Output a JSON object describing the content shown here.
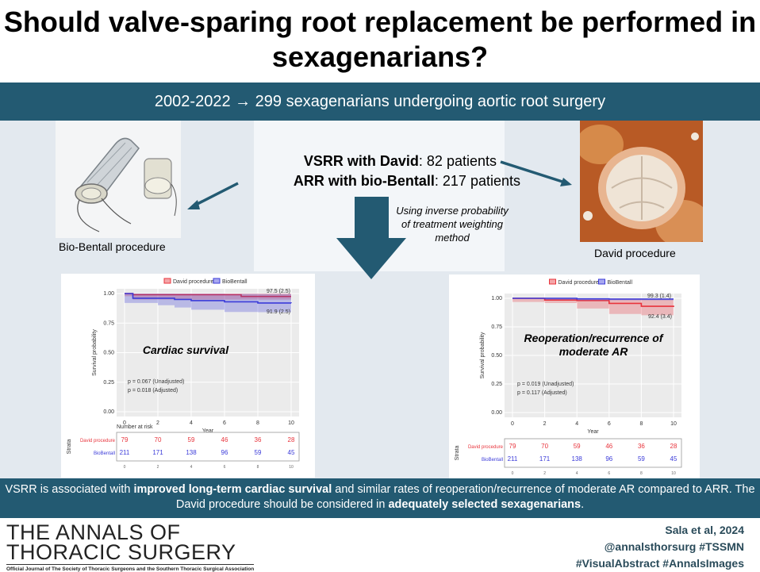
{
  "title": "Should valve-sparing root replacement be performed in sexagenarians?",
  "band_text": "2002-2022 → 299 sexagenarians undergoing aortic root surgery",
  "groups": {
    "vsrr_label": "VSRR with David",
    "vsrr_count": ": 82 patients",
    "arr_label": "ARR with bio-Bentall",
    "arr_count": ": 217 patients"
  },
  "method_note": "Using inverse probability of treatment weighting method",
  "images": {
    "bentall_caption": "Bio-Bentall procedure",
    "david_caption": "David procedure"
  },
  "colors": {
    "accent": "#235a72",
    "david": "#e8343c",
    "biobentall": "#3b3bd9"
  },
  "chart_data": [
    {
      "type": "line",
      "overlay_title": "Cardiac survival",
      "xlabel": "Year",
      "ylabel": "Survival probability",
      "legend": [
        "David procedure",
        "BioBentall"
      ],
      "x_ticks": [
        "0",
        "2",
        "4",
        "6",
        "8",
        "10"
      ],
      "y_ticks": [
        "0.00",
        "0.25",
        "0.50",
        "0.75",
        "1.00"
      ],
      "ylim": [
        0,
        1
      ],
      "xlim": [
        0,
        10
      ],
      "series": [
        {
          "name": "David procedure",
          "x": [
            0,
            0.5,
            7,
            10
          ],
          "y": [
            1.0,
            0.99,
            0.975,
            0.975
          ]
        },
        {
          "name": "BioBentall",
          "x": [
            0,
            0.5,
            2,
            3,
            4,
            6,
            8,
            10
          ],
          "y": [
            1.0,
            0.96,
            0.96,
            0.95,
            0.94,
            0.93,
            0.92,
            0.919
          ]
        }
      ],
      "end_labels": [
        "97.5 (2.5)",
        "91.9 (2.5)"
      ],
      "p_values": [
        "p = 0.067 (Unadjusted)",
        "p = 0.018 (Adjusted)"
      ],
      "risk_table": {
        "title": "Number at risk",
        "strata_label": "Strata",
        "rows": [
          {
            "name": "David procedure",
            "values": [
              "79",
              "70",
              "59",
              "46",
              "36",
              "28"
            ]
          },
          {
            "name": "BioBentall",
            "values": [
              "211",
              "171",
              "138",
              "96",
              "59",
              "45"
            ]
          }
        ]
      }
    },
    {
      "type": "line",
      "overlay_title": "Reoperation/recurrence of moderate AR",
      "xlabel": "Year",
      "ylabel": "Survival probability",
      "legend": [
        "David procedure",
        "BioBentall"
      ],
      "x_ticks": [
        "0",
        "2",
        "4",
        "6",
        "8",
        "10"
      ],
      "y_ticks": [
        "0.00",
        "0.25",
        "0.50",
        "0.75",
        "1.00"
      ],
      "ylim": [
        0,
        1
      ],
      "xlim": [
        0,
        10
      ],
      "series": [
        {
          "name": "David procedure",
          "x": [
            0,
            2,
            4,
            6,
            8,
            10
          ],
          "y": [
            1.0,
            0.985,
            0.98,
            0.955,
            0.93,
            0.924
          ]
        },
        {
          "name": "BioBentall",
          "x": [
            0,
            2,
            4,
            6,
            10
          ],
          "y": [
            1.0,
            1.0,
            0.995,
            0.993,
            0.993
          ]
        }
      ],
      "end_labels": [
        "99.3 (1.4)",
        "92.4 (3.4)"
      ],
      "p_values": [
        "p = 0.019 (Unadjusted)",
        "p = 0.117 (Adjusted)"
      ],
      "risk_table": {
        "title": "",
        "strata_label": "Strata",
        "rows": [
          {
            "name": "David procedure",
            "values": [
              "79",
              "70",
              "59",
              "46",
              "36",
              "28"
            ]
          },
          {
            "name": "BioBentall",
            "values": [
              "211",
              "171",
              "138",
              "96",
              "59",
              "45"
            ]
          }
        ]
      }
    }
  ],
  "conclusion": {
    "p1": "VSRR is associated with ",
    "b1": "improved long-term cardiac survival",
    "p2": " and similar rates of reoperation/recurrence of moderate AR compared to ARR. The David procedure should be considered in ",
    "b2": "adequately selected sexagenarians",
    "p3": "."
  },
  "journal": {
    "line1": "THE ANNALS OF",
    "line2": "THORACIC SURGERY",
    "subtitle": "Official Journal of The Society of Thoracic Surgeons and the Southern Thoracic Surgical Association"
  },
  "citation": {
    "author": "Sala et al, 2024",
    "handle": "@annalsthorsurg #TSSMN",
    "tags": "#VisualAbstract #AnnalsImages"
  }
}
